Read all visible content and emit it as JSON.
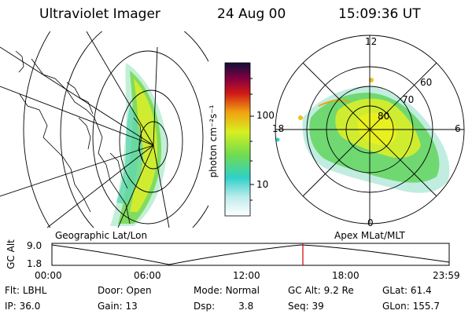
{
  "header": {
    "title": "Ultraviolet Imager",
    "date": "24 Aug 00",
    "time": "15:09:36 UT"
  },
  "panels": {
    "left_caption": "Geographic Lat/Lon",
    "right_caption": "Apex MLat/MLT"
  },
  "colorbar": {
    "unit_label": "photon cm⁻²s⁻¹",
    "ticks": [
      "100",
      "10"
    ],
    "colors": [
      "#e8f4f4",
      "#30d0c8",
      "#80e040",
      "#e8f020",
      "#f09010",
      "#d01010",
      "#800040",
      "#101040"
    ]
  },
  "polar": {
    "mlt_labels": [
      "12",
      "18",
      "6",
      "0"
    ],
    "lat_labels": [
      "60",
      "70",
      "80"
    ]
  },
  "timeline": {
    "axis_label": "GC Alt",
    "y_ticks": [
      "9.0",
      "1.8"
    ],
    "x_ticks": [
      "00:00",
      "06:00",
      "12:00",
      "18:00",
      "23:59"
    ],
    "current_hour": 15.16
  },
  "info": {
    "flt_label": "Flt:",
    "flt_value": "LBHL",
    "ip_label": "IP:",
    "ip_value": "36.0",
    "door_label": "Door:",
    "door_value": "Open",
    "gain_label": "Gain:",
    "gain_value": "13",
    "mode_label": "Mode:",
    "mode_value": "Normal",
    "dsp_label": "Dsp:",
    "dsp_value": "3.8",
    "gcalt_label": "GC Alt:",
    "gcalt_value": "9.2 Re",
    "seq_label": "Seq:",
    "seq_value": "39",
    "glat_label": "GLat:",
    "glat_value": "61.4",
    "glon_label": "GLon:",
    "glon_value": "155.7"
  }
}
